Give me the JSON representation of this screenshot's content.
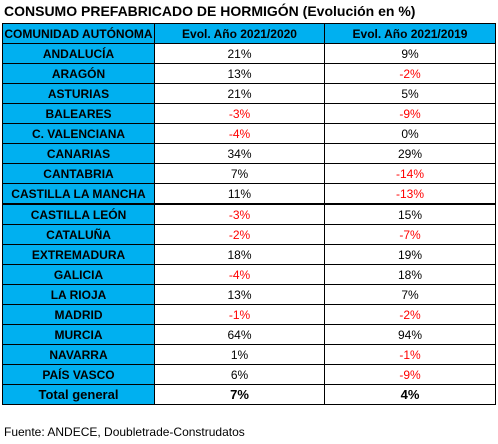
{
  "title": "CONSUMO PREFABRICADO DE HORMIGÓN (Evolución en %)",
  "table": {
    "header": [
      "COMUNIDAD AUTÓNOMA",
      "Evol. Año 2021/2020",
      "Evol. Año 2021/2019"
    ],
    "rows": [
      [
        "ANDALUCÍA",
        "21%",
        "9%"
      ],
      [
        "ARAGÓN",
        "13%",
        "-2%"
      ],
      [
        "ASTURIAS",
        "21%",
        "5%"
      ],
      [
        "BALEARES",
        "-3%",
        "-9%"
      ],
      [
        "C. VALENCIANA",
        "-4%",
        "0%"
      ],
      [
        "CANARIAS",
        "34%",
        "29%"
      ],
      [
        "CANTABRIA",
        "7%",
        "-14%"
      ],
      [
        "CASTILLA LA MANCHA",
        "11%",
        "-13%"
      ],
      [
        "CASTILLA LEÓN",
        "-3%",
        "15%"
      ],
      [
        "CATALUÑA",
        "-2%",
        "-7%"
      ],
      [
        "EXTREMADURA",
        "18%",
        "19%"
      ],
      [
        "GALICIA",
        "-4%",
        "18%"
      ],
      [
        "LA RIOJA",
        "13%",
        "7%"
      ],
      [
        "MADRID",
        "-1%",
        "-2%"
      ],
      [
        "MURCIA",
        "64%",
        "94%"
      ],
      [
        "NAVARRA",
        "1%",
        "-1%"
      ],
      [
        "PAÍS VASCO",
        "6%",
        "-9%"
      ]
    ],
    "total": [
      "Total general",
      "7%",
      "4%"
    ]
  },
  "footer": "Fuente: ANDECE, Doubletrade-Construdatos"
}
